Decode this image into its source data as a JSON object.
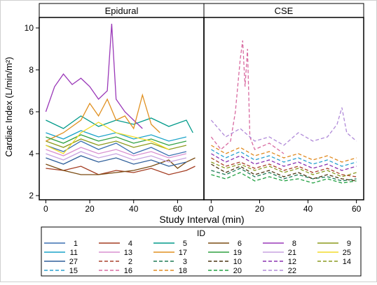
{
  "chart_data": {
    "type": "line",
    "panels": [
      {
        "title": "Epidural",
        "xlim": [
          -3,
          72
        ]
      },
      {
        "title": "CSE",
        "xlim": [
          -3,
          63
        ]
      }
    ],
    "xlabel": "Study Interval (min)",
    "ylabel": "Cardiac Index (L/min/m²)",
    "ylim": [
      1.8,
      10.5
    ],
    "xticks": [
      0,
      20,
      40,
      60
    ],
    "yticks": [
      2,
      4,
      6,
      8,
      10
    ],
    "legend_title": "ID",
    "legend_placement": "bottom",
    "series": [
      {
        "name": "1",
        "color": "#3a6fb0",
        "dash": "solid",
        "panel": "Epidural",
        "x": [
          0,
          8,
          16,
          24,
          32,
          40,
          48,
          56,
          64
        ],
        "y": [
          4.4,
          4.1,
          4.6,
          4.2,
          4.5,
          4.0,
          4.3,
          3.9,
          4.1
        ]
      },
      {
        "name": "4",
        "color": "#a33b20",
        "dash": "solid",
        "panel": "Epidural",
        "x": [
          0,
          8,
          16,
          24,
          32,
          40,
          48,
          56,
          64,
          68
        ],
        "y": [
          3.3,
          3.2,
          3.4,
          3.0,
          3.2,
          3.1,
          3.3,
          3.0,
          3.2,
          3.4
        ]
      },
      {
        "name": "5",
        "color": "#009a8a",
        "dash": "solid",
        "panel": "Epidural",
        "x": [
          0,
          8,
          16,
          24,
          32,
          40,
          48,
          56,
          64,
          67
        ],
        "y": [
          5.6,
          5.2,
          5.8,
          5.3,
          5.6,
          5.4,
          5.7,
          5.3,
          5.6,
          5.0
        ]
      },
      {
        "name": "6",
        "color": "#7a4b12",
        "dash": "solid",
        "panel": "Epidural",
        "x": [
          0,
          8,
          16,
          24,
          32,
          40,
          48,
          56,
          60,
          64,
          68
        ],
        "y": [
          3.5,
          3.2,
          3.0,
          3.0,
          3.1,
          3.2,
          3.4,
          3.7,
          3.3,
          3.6,
          3.8
        ]
      },
      {
        "name": "8",
        "color": "#9a38b8",
        "dash": "solid",
        "panel": "Epidural",
        "x": [
          0,
          4,
          8,
          12,
          16,
          20,
          24,
          28,
          30,
          32,
          36,
          40,
          44
        ],
        "y": [
          6.0,
          7.2,
          7.8,
          7.3,
          7.6,
          7.2,
          6.6,
          7.0,
          10.2,
          6.6,
          6.0,
          5.6,
          5.2
        ]
      },
      {
        "name": "9",
        "color": "#8c9a1a",
        "dash": "solid",
        "panel": "Epidural",
        "x": [
          0,
          8,
          16,
          24,
          32,
          40,
          48,
          56,
          64
        ],
        "y": [
          4.6,
          4.3,
          4.7,
          4.4,
          4.6,
          4.3,
          4.5,
          4.2,
          4.4
        ]
      },
      {
        "name": "11",
        "color": "#1aa3c8",
        "dash": "solid",
        "panel": "Epidural",
        "x": [
          0,
          8,
          16,
          24,
          32,
          40,
          48,
          56,
          64
        ],
        "y": [
          5.0,
          4.7,
          5.1,
          4.8,
          5.0,
          4.7,
          4.9,
          4.6,
          4.8
        ]
      },
      {
        "name": "13",
        "color": "#d890d0",
        "dash": "solid",
        "panel": "Epidural",
        "x": [
          0,
          8,
          16,
          24,
          32,
          40,
          48,
          56,
          64
        ],
        "y": [
          4.2,
          3.9,
          4.3,
          4.0,
          4.2,
          3.9,
          4.1,
          3.8,
          4.0
        ]
      },
      {
        "name": "17",
        "color": "#e09020",
        "dash": "solid",
        "panel": "Epidural",
        "x": [
          0,
          8,
          16,
          20,
          24,
          28,
          32,
          36,
          40,
          44,
          48,
          52
        ],
        "y": [
          4.6,
          5.0,
          5.6,
          6.4,
          5.8,
          6.6,
          5.6,
          5.8,
          5.2,
          6.8,
          5.4,
          5.0
        ]
      },
      {
        "name": "19",
        "color": "#2fa040",
        "dash": "solid",
        "panel": "Epidural",
        "x": [
          0,
          8,
          16,
          24,
          32,
          40,
          48,
          56,
          64
        ],
        "y": [
          4.8,
          4.5,
          4.9,
          4.6,
          4.8,
          4.5,
          4.7,
          4.4,
          4.6
        ]
      },
      {
        "name": "21",
        "color": "#c7a3e0",
        "dash": "solid",
        "panel": "Epidural",
        "x": [
          0,
          8,
          16,
          24,
          32,
          40,
          48,
          56,
          64
        ],
        "y": [
          4.0,
          3.7,
          4.1,
          3.8,
          4.0,
          3.7,
          3.9,
          3.6,
          3.8
        ]
      },
      {
        "name": "25",
        "color": "#f2dc2a",
        "dash": "solid",
        "panel": "Epidural",
        "x": [
          0,
          8,
          16,
          24,
          32,
          40,
          48,
          56
        ],
        "y": [
          4.4,
          4.0,
          5.0,
          5.5,
          5.0,
          4.8,
          4.6,
          4.2
        ]
      },
      {
        "name": "27",
        "color": "#2f5f9a",
        "dash": "solid",
        "panel": "Epidural",
        "x": [
          0,
          8,
          16,
          24,
          32,
          40,
          48,
          56,
          64
        ],
        "y": [
          3.8,
          3.5,
          3.9,
          3.6,
          3.8,
          3.5,
          3.7,
          3.4,
          3.6
        ]
      },
      {
        "name": "2",
        "color": "#a8402a",
        "dash": "dashed",
        "panel": "CSE",
        "x": [
          0,
          6,
          12,
          18,
          24,
          30,
          36,
          42,
          48,
          54,
          60
        ],
        "y": [
          3.8,
          3.4,
          3.6,
          3.3,
          3.5,
          3.2,
          3.4,
          3.1,
          3.3,
          3.0,
          2.9
        ]
      },
      {
        "name": "3",
        "color": "#1f7a55",
        "dash": "dashed",
        "panel": "CSE",
        "x": [
          0,
          6,
          12,
          18,
          24,
          30,
          36,
          42,
          48,
          54,
          60
        ],
        "y": [
          3.2,
          3.0,
          3.3,
          2.9,
          3.1,
          2.8,
          3.0,
          2.8,
          2.9,
          2.7,
          2.8
        ]
      },
      {
        "name": "10",
        "color": "#4a3410",
        "dash": "dashed",
        "panel": "CSE",
        "x": [
          0,
          6,
          12,
          18,
          24,
          30,
          36,
          42,
          48,
          54,
          60
        ],
        "y": [
          3.5,
          3.1,
          3.4,
          3.0,
          3.2,
          2.9,
          3.1,
          2.8,
          3.0,
          2.8,
          2.7
        ]
      },
      {
        "name": "12",
        "color": "#8a30b0",
        "dash": "dashed",
        "panel": "CSE",
        "x": [
          0,
          6,
          12,
          18,
          24,
          30,
          36,
          42,
          48,
          54,
          60
        ],
        "y": [
          4.0,
          3.6,
          3.9,
          3.5,
          3.7,
          3.4,
          3.6,
          3.3,
          3.5,
          3.2,
          3.4
        ]
      },
      {
        "name": "14",
        "color": "#8a9a20",
        "dash": "dashed",
        "panel": "CSE",
        "x": [
          0,
          6,
          12,
          18,
          24,
          30,
          36,
          42,
          48,
          54,
          60
        ],
        "y": [
          3.6,
          3.3,
          3.5,
          3.2,
          3.4,
          3.1,
          3.3,
          3.0,
          3.2,
          2.9,
          3.1
        ]
      },
      {
        "name": "15",
        "color": "#2aa0d0",
        "dash": "dashed",
        "panel": "CSE",
        "x": [
          0,
          6,
          12,
          18,
          24,
          30,
          36,
          42,
          48,
          54,
          60
        ],
        "y": [
          4.2,
          3.8,
          4.1,
          3.7,
          3.9,
          3.6,
          3.8,
          3.5,
          3.7,
          3.4,
          3.6
        ]
      },
      {
        "name": "16",
        "color": "#d86aa0",
        "dash": "dashed",
        "panel": "CSE",
        "x": [
          0,
          4,
          8,
          10,
          12,
          13,
          14,
          15,
          16,
          18,
          24,
          30
        ],
        "y": [
          4.8,
          4.2,
          4.6,
          6.0,
          8.5,
          9.4,
          7.2,
          9.0,
          4.8,
          4.2,
          4.5,
          4.0
        ]
      },
      {
        "name": "18",
        "color": "#e08a20",
        "dash": "dashed",
        "panel": "CSE",
        "x": [
          0,
          6,
          12,
          18,
          24,
          30,
          36,
          42,
          48,
          54,
          60
        ],
        "y": [
          4.4,
          4.0,
          4.3,
          3.9,
          4.1,
          3.8,
          4.0,
          3.7,
          3.9,
          3.6,
          3.8
        ]
      },
      {
        "name": "20",
        "color": "#20a040",
        "dash": "dashed",
        "panel": "CSE",
        "x": [
          0,
          6,
          12,
          18,
          24,
          30,
          36,
          42,
          48,
          54,
          60
        ],
        "y": [
          3.0,
          2.8,
          3.1,
          2.7,
          2.9,
          2.7,
          2.8,
          2.6,
          2.8,
          2.6,
          2.7
        ]
      },
      {
        "name": "22",
        "color": "#b08ad8",
        "dash": "dashed",
        "panel": "CSE",
        "x": [
          0,
          6,
          12,
          18,
          24,
          30,
          36,
          42,
          48,
          52,
          54,
          56,
          58,
          60
        ],
        "y": [
          5.6,
          4.8,
          5.2,
          4.6,
          4.8,
          4.4,
          5.0,
          4.6,
          4.8,
          5.4,
          6.2,
          5.0,
          4.8,
          4.6
        ]
      }
    ]
  }
}
